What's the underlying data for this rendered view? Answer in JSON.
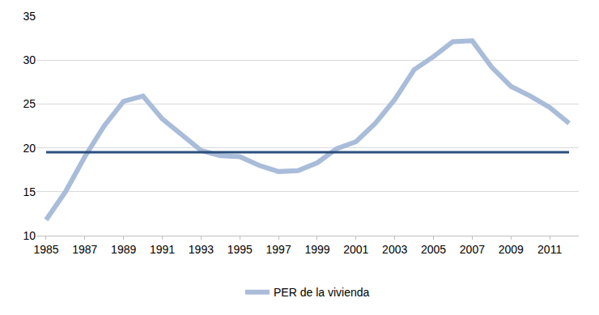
{
  "chart_data": {
    "type": "line",
    "categories": [
      "1985",
      null,
      "1987",
      null,
      "1989",
      null,
      "1991",
      null,
      "1993",
      null,
      "1995",
      null,
      "1997",
      null,
      "1999",
      null,
      "2001",
      null,
      "2003",
      null,
      "2005",
      null,
      "2007",
      null,
      "2009",
      null,
      "2011",
      null
    ],
    "series": [
      {
        "name": "PER de la vivienda",
        "color": "#a9bcd9",
        "line_style": "solid",
        "values": [
          11.8,
          15,
          19,
          22.5,
          25.3,
          25.9,
          23.3,
          21.5,
          19.7,
          19.1,
          19,
          18,
          17.3,
          17.4,
          18.3,
          19.9,
          20.7,
          22.8,
          25.5,
          28.9,
          30.4,
          32.1,
          32.2,
          29.2,
          27,
          25.9,
          24.6,
          22.8
        ]
      },
      {
        "color": "#2c4f7c",
        "line_style": "solid",
        "values": [
          19.5,
          19.5,
          19.5,
          19.5,
          19.5,
          19.5,
          19.5,
          19.5,
          19.5,
          19.5,
          19.5,
          19.5,
          19.5,
          19.5,
          19.5,
          19.5,
          19.5,
          19.5,
          19.5,
          19.5,
          19.5,
          19.5,
          19.5,
          19.5,
          19.5,
          19.5,
          19.5,
          19.5
        ]
      }
    ],
    "ylim": [
      10,
      35
    ],
    "yticks": [
      10,
      15,
      20,
      25,
      30,
      35
    ],
    "grid": true,
    "legend": "bottom"
  }
}
